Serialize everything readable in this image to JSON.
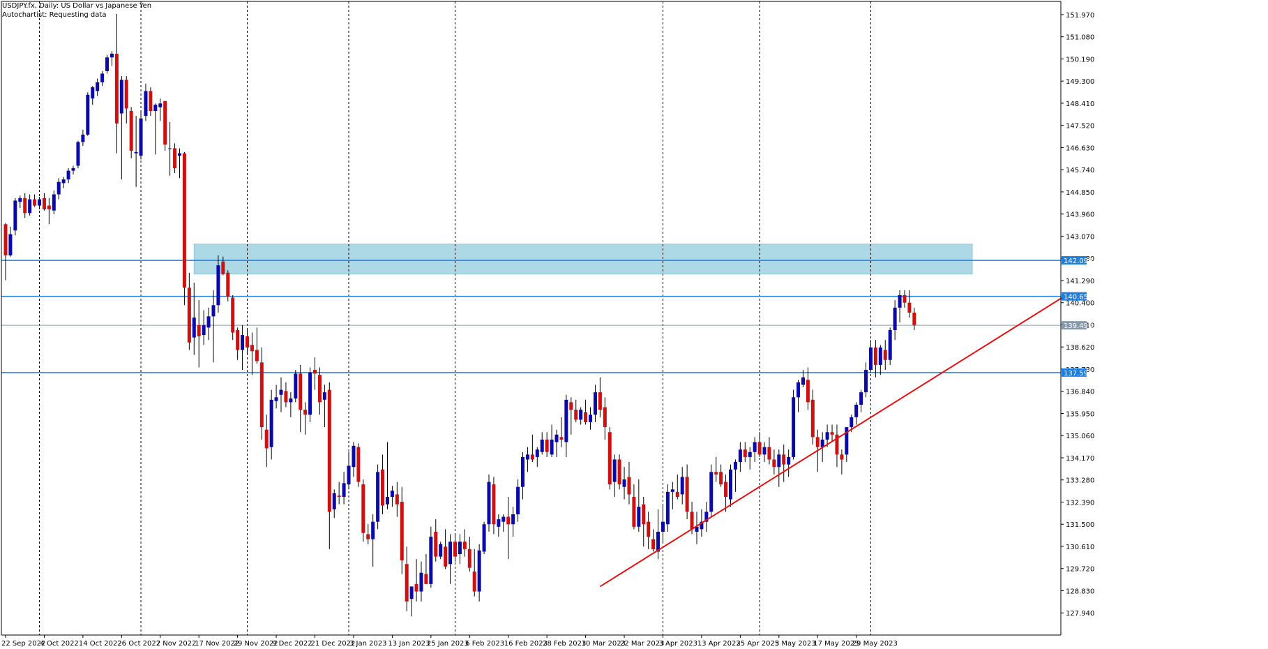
{
  "header": {
    "symbol": "USDJPY.fx",
    "timeframe": "Daily",
    "description": "US Dollar vs Japanese Yen",
    "status_line": "Autochartist: Requesting data"
  },
  "colors": {
    "background": "#ffffff",
    "bull_candle": "#0a0aaa",
    "bear_candle": "#cc1111",
    "wick": "#000000",
    "support_line": "#1e7fe0",
    "zone_fill": "#add8e6",
    "trendline": "#e81010",
    "bid_line": "#8899aa"
  },
  "chart_data": {
    "type": "candlestick",
    "title": "USDJPY.fx, Daily: US Dollar vs Japanese Yen",
    "ylim": [
      127.05,
      152.5
    ],
    "y_ticks": [
      "151.970",
      "151.080",
      "150.190",
      "149.300",
      "148.410",
      "147.520",
      "146.630",
      "145.740",
      "144.850",
      "143.960",
      "143.070",
      "142.180",
      "141.290",
      "140.400",
      "139.510",
      "138.620",
      "137.730",
      "136.840",
      "135.950",
      "135.060",
      "134.170",
      "133.280",
      "132.390",
      "131.500",
      "130.610",
      "129.720",
      "128.830",
      "127.940"
    ],
    "x_labels": [
      "22 Sep 2022",
      "4 Oct 2022",
      "14 Oct 2022",
      "26 Oct 2022",
      "7 Nov 2022",
      "17 Nov 2022",
      "29 Nov 2022",
      "9 Dec 2022",
      "21 Dec 2022",
      "3 Jan 2023",
      "13 Jan 2023",
      "25 Jan 2023",
      "6 Feb 2023",
      "16 Feb 2023",
      "28 Feb 2023",
      "10 Mar 2023",
      "22 Mar 2023",
      "3 Apr 2023",
      "13 Apr 2023",
      "25 Apr 2023",
      "5 May 2023",
      "17 May 2023",
      "29 May 2023"
    ],
    "x_label_index": [
      0,
      8,
      16,
      24,
      32,
      40,
      48,
      56,
      64,
      72,
      80,
      88,
      96,
      104,
      112,
      120,
      128,
      136,
      144,
      152,
      160,
      168,
      176
    ],
    "separator_index": [
      7,
      28,
      50,
      71,
      93,
      136,
      156,
      179
    ],
    "price_levels": [
      {
        "label": "142.099",
        "value": 142.099
      },
      {
        "label": "140.653",
        "value": 140.653
      },
      {
        "label": "137.593",
        "value": 137.593
      }
    ],
    "current_price": {
      "label": "139.490",
      "value": 139.49
    },
    "zone": {
      "start_index": 39,
      "end_index": 200,
      "high": 142.75,
      "low": 141.55
    },
    "trendline": {
      "start_index": 123,
      "start_value": 129.0,
      "end_index": 219,
      "end_value": 140.65
    },
    "candles": [
      [
        143.55,
        143.6,
        141.3,
        142.3
      ],
      [
        142.3,
        143.45,
        142.25,
        143.15
      ],
      [
        143.3,
        144.6,
        143.1,
        144.5
      ],
      [
        144.45,
        144.7,
        144.2,
        144.6
      ],
      [
        144.6,
        144.8,
        143.8,
        144.0
      ],
      [
        144.0,
        144.75,
        143.9,
        144.55
      ],
      [
        144.55,
        144.75,
        144.25,
        144.3
      ],
      [
        144.3,
        144.65,
        144.15,
        144.55
      ],
      [
        144.6,
        144.8,
        144.1,
        144.15
      ],
      [
        144.3,
        144.6,
        143.55,
        144.15
      ],
      [
        144.1,
        144.9,
        143.95,
        144.75
      ],
      [
        144.75,
        145.4,
        144.55,
        145.25
      ],
      [
        145.2,
        145.45,
        145.0,
        145.35
      ],
      [
        145.35,
        145.8,
        145.2,
        145.7
      ],
      [
        145.7,
        145.9,
        145.55,
        145.8
      ],
      [
        145.9,
        146.9,
        145.8,
        146.85
      ],
      [
        146.85,
        147.35,
        146.7,
        147.15
      ],
      [
        147.15,
        148.85,
        147.1,
        148.75
      ],
      [
        148.6,
        149.1,
        148.35,
        149.05
      ],
      [
        148.9,
        149.4,
        148.7,
        149.25
      ],
      [
        149.25,
        149.7,
        149.1,
        149.6
      ],
      [
        149.7,
        150.35,
        149.6,
        150.25
      ],
      [
        150.25,
        150.5,
        149.9,
        150.4
      ],
      [
        150.4,
        152.0,
        146.4,
        147.6
      ],
      [
        148.0,
        149.5,
        145.35,
        149.35
      ],
      [
        149.35,
        149.5,
        147.6,
        148.2
      ],
      [
        148.1,
        148.25,
        146.2,
        146.5
      ],
      [
        146.4,
        147.9,
        145.05,
        146.45
      ],
      [
        146.3,
        148.1,
        146.15,
        147.8
      ],
      [
        147.9,
        149.2,
        147.7,
        148.9
      ],
      [
        148.9,
        149.05,
        147.9,
        148.1
      ],
      [
        148.1,
        148.4,
        146.35,
        148.35
      ],
      [
        148.25,
        148.6,
        147.7,
        148.4
      ],
      [
        148.5,
        148.5,
        146.5,
        146.75
      ],
      [
        146.6,
        147.65,
        145.5,
        146.6
      ],
      [
        146.6,
        146.8,
        145.6,
        145.8
      ],
      [
        146.3,
        146.6,
        145.4,
        146.4
      ],
      [
        146.4,
        146.45,
        140.3,
        141.0
      ],
      [
        141.0,
        141.6,
        138.5,
        138.8
      ],
      [
        139.0,
        141.2,
        138.3,
        139.8
      ],
      [
        139.5,
        140.5,
        137.8,
        139.05
      ],
      [
        139.1,
        140.1,
        138.7,
        139.5
      ],
      [
        139.4,
        140.2,
        138.9,
        139.85
      ],
      [
        139.85,
        140.9,
        138.0,
        140.3
      ],
      [
        140.3,
        142.3,
        140.0,
        141.9
      ],
      [
        142.05,
        142.25,
        141.5,
        141.55
      ],
      [
        141.6,
        141.7,
        140.45,
        140.65
      ],
      [
        140.6,
        140.7,
        138.9,
        139.2
      ],
      [
        139.3,
        139.4,
        138.1,
        138.5
      ],
      [
        138.5,
        139.5,
        137.7,
        139.1
      ],
      [
        139.05,
        139.3,
        138.3,
        138.6
      ],
      [
        138.7,
        139.2,
        137.5,
        138.45
      ],
      [
        138.5,
        139.4,
        137.95,
        138.05
      ],
      [
        138.0,
        138.6,
        134.9,
        135.4
      ],
      [
        135.3,
        135.9,
        133.8,
        134.55
      ],
      [
        134.6,
        136.9,
        134.1,
        136.5
      ],
      [
        136.45,
        137.1,
        136.15,
        136.6
      ],
      [
        136.7,
        137.4,
        136.0,
        136.9
      ],
      [
        136.85,
        137.2,
        136.2,
        136.4
      ],
      [
        136.4,
        136.8,
        135.8,
        136.55
      ],
      [
        136.55,
        137.7,
        136.4,
        137.55
      ],
      [
        137.55,
        137.9,
        135.2,
        136.1
      ],
      [
        136.1,
        136.4,
        135.1,
        135.9
      ],
      [
        135.9,
        137.8,
        135.6,
        137.6
      ],
      [
        137.7,
        138.2,
        136.9,
        137.55
      ],
      [
        137.5,
        137.8,
        135.9,
        136.4
      ],
      [
        136.5,
        137.1,
        135.4,
        136.8
      ],
      [
        136.9,
        137.2,
        130.5,
        132.0
      ],
      [
        132.1,
        132.9,
        131.75,
        132.75
      ],
      [
        132.65,
        133.2,
        132.3,
        132.6
      ],
      [
        132.6,
        133.6,
        132.3,
        133.15
      ],
      [
        133.1,
        134.4,
        132.9,
        133.85
      ],
      [
        133.8,
        134.8,
        133.4,
        134.65
      ],
      [
        134.6,
        134.75,
        133.0,
        133.2
      ],
      [
        133.1,
        133.3,
        130.8,
        131.15
      ],
      [
        131.1,
        131.5,
        130.7,
        130.9
      ],
      [
        130.9,
        131.9,
        129.8,
        131.6
      ],
      [
        131.6,
        133.9,
        131.3,
        133.6
      ],
      [
        133.7,
        134.3,
        131.9,
        132.25
      ],
      [
        132.3,
        134.8,
        132.1,
        132.6
      ],
      [
        132.6,
        133.05,
        132.2,
        132.85
      ],
      [
        132.7,
        133.2,
        131.8,
        132.3
      ],
      [
        132.4,
        133.0,
        129.5,
        130.05
      ],
      [
        129.9,
        130.6,
        128.0,
        128.4
      ],
      [
        128.5,
        129.0,
        127.8,
        129.0
      ],
      [
        129.1,
        130.1,
        128.4,
        128.8
      ],
      [
        128.8,
        130.0,
        128.4,
        129.55
      ],
      [
        129.5,
        130.3,
        129.3,
        129.1
      ],
      [
        129.1,
        131.4,
        128.95,
        131.0
      ],
      [
        131.2,
        131.7,
        130.0,
        130.2
      ],
      [
        130.2,
        130.8,
        130.1,
        130.7
      ],
      [
        130.6,
        131.3,
        129.7,
        129.8
      ],
      [
        129.9,
        131.1,
        129.1,
        130.8
      ],
      [
        130.8,
        131.1,
        130.0,
        130.2
      ],
      [
        130.3,
        131.1,
        129.9,
        130.8
      ],
      [
        130.8,
        131.3,
        130.2,
        130.5
      ],
      [
        130.5,
        131.0,
        129.6,
        129.75
      ],
      [
        129.6,
        130.5,
        128.6,
        128.8
      ],
      [
        128.8,
        130.7,
        128.4,
        130.45
      ],
      [
        130.4,
        131.6,
        130.3,
        131.5
      ],
      [
        131.5,
        133.5,
        131.2,
        133.2
      ],
      [
        133.1,
        133.4,
        131.1,
        131.5
      ],
      [
        131.4,
        131.9,
        131.0,
        131.7
      ],
      [
        131.6,
        131.9,
        131.2,
        131.8
      ],
      [
        131.8,
        132.6,
        130.1,
        131.5
      ],
      [
        131.5,
        132.2,
        131.0,
        131.9
      ],
      [
        131.9,
        133.3,
        131.6,
        133.0
      ],
      [
        133.0,
        134.4,
        132.5,
        134.2
      ],
      [
        134.1,
        134.6,
        133.6,
        134.3
      ],
      [
        134.3,
        135.1,
        134.0,
        134.1
      ],
      [
        134.2,
        134.6,
        133.8,
        134.5
      ],
      [
        134.4,
        135.2,
        134.3,
        134.9
      ],
      [
        134.9,
        135.2,
        134.2,
        134.4
      ],
      [
        134.3,
        135.5,
        134.2,
        134.9
      ],
      [
        134.8,
        135.3,
        134.2,
        135.1
      ],
      [
        135.0,
        135.8,
        134.6,
        134.9
      ],
      [
        134.8,
        136.7,
        134.2,
        136.5
      ],
      [
        136.4,
        136.6,
        135.1,
        136.1
      ],
      [
        136.1,
        136.5,
        135.6,
        135.7
      ],
      [
        135.7,
        136.2,
        135.5,
        136.1
      ],
      [
        136.0,
        136.5,
        135.5,
        135.6
      ],
      [
        135.6,
        136.2,
        135.3,
        135.9
      ],
      [
        135.9,
        137.1,
        135.6,
        136.8
      ],
      [
        136.8,
        137.4,
        135.8,
        136.1
      ],
      [
        136.2,
        136.6,
        134.9,
        135.4
      ],
      [
        135.2,
        135.4,
        132.9,
        133.1
      ],
      [
        133.2,
        134.3,
        132.6,
        134.1
      ],
      [
        134.1,
        134.3,
        132.9,
        133.1
      ],
      [
        133.0,
        133.8,
        132.5,
        133.3
      ],
      [
        133.4,
        134.0,
        132.3,
        132.7
      ],
      [
        132.6,
        133.1,
        131.3,
        131.4
      ],
      [
        131.4,
        133.3,
        131.2,
        132.2
      ],
      [
        132.3,
        132.6,
        130.6,
        131.5
      ],
      [
        131.6,
        132.0,
        130.5,
        131.0
      ],
      [
        130.9,
        131.3,
        130.4,
        130.5
      ],
      [
        130.4,
        132.1,
        130.1,
        131.2
      ],
      [
        131.2,
        132.3,
        130.8,
        131.6
      ],
      [
        131.5,
        133.1,
        131.2,
        132.8
      ],
      [
        132.8,
        133.2,
        132.1,
        132.9
      ],
      [
        132.8,
        133.5,
        132.5,
        132.6
      ],
      [
        132.7,
        133.8,
        132.3,
        133.4
      ],
      [
        133.4,
        133.9,
        131.7,
        132.0
      ],
      [
        132.0,
        132.4,
        131.1,
        131.3
      ],
      [
        131.2,
        132.0,
        130.7,
        131.4
      ],
      [
        131.3,
        132.1,
        131.0,
        131.6
      ],
      [
        131.6,
        132.4,
        131.2,
        132.0
      ],
      [
        132.0,
        133.9,
        131.8,
        133.6
      ],
      [
        133.6,
        134.2,
        133.2,
        133.5
      ],
      [
        133.6,
        133.9,
        133.0,
        133.1
      ],
      [
        133.2,
        133.5,
        132.0,
        132.6
      ],
      [
        132.5,
        133.9,
        132.2,
        133.7
      ],
      [
        133.7,
        134.1,
        132.8,
        134.0
      ],
      [
        134.0,
        134.8,
        133.6,
        134.5
      ],
      [
        134.5,
        134.8,
        134.0,
        134.2
      ],
      [
        134.2,
        134.6,
        133.7,
        134.4
      ],
      [
        134.4,
        135.0,
        134.0,
        134.8
      ],
      [
        134.8,
        135.2,
        134.2,
        134.3
      ],
      [
        134.3,
        134.8,
        134.0,
        134.6
      ],
      [
        134.6,
        135.0,
        133.9,
        134.1
      ],
      [
        134.1,
        134.5,
        133.5,
        133.8
      ],
      [
        133.8,
        134.5,
        133.0,
        134.3
      ],
      [
        134.3,
        134.7,
        133.2,
        133.9
      ],
      [
        133.9,
        134.5,
        133.4,
        134.2
      ],
      [
        134.2,
        136.9,
        134.1,
        136.6
      ],
      [
        136.6,
        137.3,
        136.0,
        137.2
      ],
      [
        137.1,
        137.7,
        137.0,
        137.4
      ],
      [
        137.3,
        137.8,
        136.1,
        136.4
      ],
      [
        136.5,
        136.9,
        134.7,
        135.0
      ],
      [
        135.0,
        135.3,
        133.6,
        134.6
      ],
      [
        134.6,
        135.2,
        134.0,
        134.9
      ],
      [
        134.9,
        135.5,
        134.6,
        135.2
      ],
      [
        135.2,
        135.5,
        134.8,
        135.1
      ],
      [
        135.1,
        135.5,
        133.8,
        134.3
      ],
      [
        134.3,
        134.5,
        133.5,
        134.1
      ],
      [
        134.3,
        135.2,
        134.0,
        135.4
      ],
      [
        135.4,
        135.9,
        135.2,
        135.8
      ],
      [
        135.8,
        136.4,
        135.5,
        136.3
      ],
      [
        136.3,
        136.9,
        136.0,
        136.8
      ],
      [
        136.8,
        138.0,
        136.6,
        137.7
      ],
      [
        137.7,
        138.9,
        137.6,
        138.6
      ],
      [
        138.6,
        138.9,
        137.4,
        137.9
      ],
      [
        137.9,
        138.7,
        137.5,
        138.6
      ],
      [
        138.5,
        138.9,
        137.7,
        138.1
      ],
      [
        138.1,
        139.4,
        137.9,
        139.3
      ],
      [
        139.3,
        140.5,
        138.9,
        140.2
      ],
      [
        140.2,
        140.9,
        139.6,
        140.7
      ],
      [
        140.7,
        140.9,
        140.2,
        140.4
      ],
      [
        140.4,
        140.9,
        139.8,
        140.0
      ],
      [
        140.0,
        140.2,
        139.3,
        139.5
      ]
    ]
  }
}
